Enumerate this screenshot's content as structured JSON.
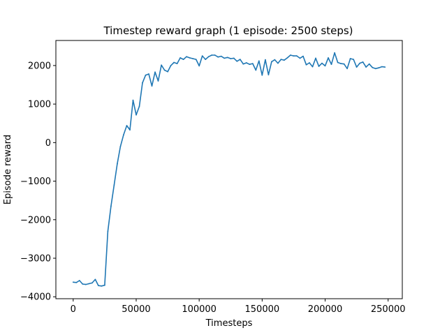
{
  "chart_data": {
    "type": "line",
    "title": "Timestep reward graph (1 episode: 2500 steps)",
    "xlabel": "Timesteps",
    "ylabel": "Episode reward",
    "xlim": [
      -13750,
      261250
    ],
    "ylim": [
      -4050,
      2650
    ],
    "xticks": [
      {
        "value": 0,
        "label": "0"
      },
      {
        "value": 50000,
        "label": "50000"
      },
      {
        "value": 100000,
        "label": "100000"
      },
      {
        "value": 150000,
        "label": "150000"
      },
      {
        "value": 200000,
        "label": "200000"
      },
      {
        "value": 250000,
        "label": "250000"
      }
    ],
    "yticks": [
      {
        "value": -4000,
        "label": "−4000"
      },
      {
        "value": -3000,
        "label": "−3000"
      },
      {
        "value": -2000,
        "label": "−2000"
      },
      {
        "value": -1000,
        "label": "−1000"
      },
      {
        "value": 0,
        "label": "0"
      },
      {
        "value": 1000,
        "label": "1000"
      },
      {
        "value": 2000,
        "label": "2000"
      }
    ],
    "grid": false,
    "legend": "none",
    "color": "#1f77b4",
    "series": [
      {
        "x": [
          0,
          2500,
          5000,
          7500,
          10000,
          12500,
          15000,
          17500,
          20000,
          22500,
          25000,
          27500,
          30000,
          32500,
          35000,
          37500,
          40000,
          42500,
          45000,
          47500,
          50000,
          52500,
          55000,
          57500,
          60000,
          62500,
          65000,
          67500,
          70000,
          72500,
          75000,
          77500,
          80000,
          82500,
          85000,
          87500,
          90000,
          92500,
          95000,
          97500,
          100000,
          102500,
          105000,
          107500,
          110000,
          112500,
          115000,
          117500,
          120000,
          122500,
          125000,
          127500,
          130000,
          132500,
          135000,
          137500,
          140000,
          142500,
          145000,
          147500,
          150000,
          152500,
          155000,
          157500,
          160000,
          162500,
          165000,
          167500,
          170000,
          172500,
          175000,
          177500,
          180000,
          182500,
          185000,
          187500,
          190000,
          192500,
          195000,
          197500,
          200000,
          202500,
          205000,
          207500,
          210000,
          212500,
          215000,
          217500,
          220000,
          222500,
          225000,
          227500,
          230000,
          232500,
          235000,
          237500,
          240000,
          242500,
          245000,
          247500
        ],
        "values": [
          -3620,
          -3630,
          -3580,
          -3670,
          -3680,
          -3660,
          -3640,
          -3550,
          -3710,
          -3720,
          -3700,
          -2300,
          -1650,
          -1100,
          -550,
          -100,
          200,
          440,
          330,
          1100,
          720,
          940,
          1550,
          1750,
          1780,
          1470,
          1830,
          1600,
          2010,
          1880,
          1840,
          2000,
          2080,
          2050,
          2200,
          2160,
          2230,
          2200,
          2180,
          2160,
          1990,
          2250,
          2160,
          2230,
          2270,
          2270,
          2220,
          2240,
          2190,
          2210,
          2180,
          2190,
          2110,
          2160,
          2040,
          2070,
          2030,
          2050,
          1880,
          2120,
          1750,
          2150,
          1760,
          2100,
          2150,
          2060,
          2160,
          2140,
          2200,
          2270,
          2250,
          2250,
          2190,
          2240,
          2020,
          2070,
          1970,
          2190,
          1980,
          2060,
          1990,
          2200,
          2030,
          2330,
          2080,
          2050,
          2040,
          1920,
          2180,
          2160,
          1960,
          2060,
          2090,
          1960,
          2040,
          1950,
          1920,
          1940,
          1970,
          1960
        ]
      }
    ]
  }
}
